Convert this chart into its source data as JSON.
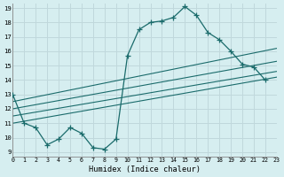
{
  "xlabel": "Humidex (Indice chaleur)",
  "xlim": [
    0,
    23
  ],
  "ylim": [
    9,
    19
  ],
  "yticks": [
    9,
    10,
    11,
    12,
    13,
    14,
    15,
    16,
    17,
    18,
    19
  ],
  "xticks": [
    0,
    1,
    2,
    3,
    4,
    5,
    6,
    7,
    8,
    9,
    10,
    11,
    12,
    13,
    14,
    15,
    16,
    17,
    18,
    19,
    20,
    21,
    22,
    23
  ],
  "bg_color": "#d6eef0",
  "grid_color": "#c0d8dc",
  "line_color": "#1a6b6b",
  "line1_x": [
    0,
    1,
    2,
    3,
    4,
    5,
    6,
    7,
    8,
    9,
    10,
    11,
    12,
    13,
    14,
    15,
    16,
    17,
    18,
    19,
    20,
    21,
    22
  ],
  "line1_y": [
    13,
    11,
    10.7,
    9.5,
    9.9,
    10.7,
    10.3,
    9.3,
    9.2,
    9.9,
    15.7,
    17.5,
    18.0,
    18.1,
    18.35,
    19.1,
    18.5,
    17.3,
    16.8,
    16.0,
    15.1,
    14.9,
    14.0
  ],
  "trend_lines": [
    {
      "x": [
        0,
        23
      ],
      "y": [
        11.0,
        14.2
      ]
    },
    {
      "x": [
        0,
        23
      ],
      "y": [
        11.5,
        14.6
      ]
    },
    {
      "x": [
        0,
        23
      ],
      "y": [
        12.0,
        15.3
      ]
    },
    {
      "x": [
        0,
        23
      ],
      "y": [
        12.5,
        16.2
      ]
    }
  ]
}
